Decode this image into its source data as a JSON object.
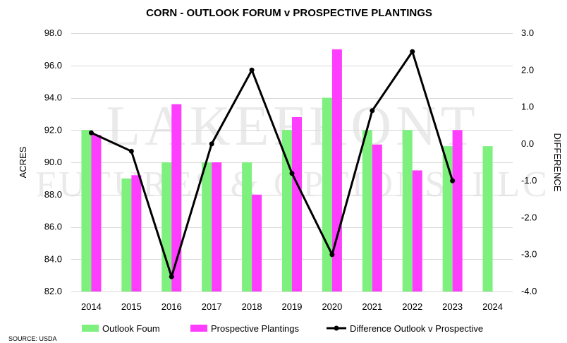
{
  "chart_data": {
    "type": "bar",
    "title": "CORN - OUTLOOK FORUM v PROSPECTIVE PLANTINGS",
    "categories": [
      "2014",
      "2015",
      "2016",
      "2017",
      "2018",
      "2019",
      "2020",
      "2021",
      "2022",
      "2023",
      "2024"
    ],
    "ylabel": "ACRES",
    "y2label": "DIFFERENCE",
    "ylim": [
      82.0,
      98.0
    ],
    "y2lim": [
      -4.0,
      3.0
    ],
    "yticks": [
      "82.0",
      "84.0",
      "86.0",
      "88.0",
      "90.0",
      "92.0",
      "94.0",
      "96.0",
      "98.0"
    ],
    "y2ticks": [
      "-4.0",
      "-3.0",
      "-2.0",
      "-1.0",
      "0.0",
      "1.0",
      "2.0",
      "3.0"
    ],
    "series": [
      {
        "name": "Outlook Foum",
        "type": "bar",
        "color": "#7ef07e",
        "values": [
          92.0,
          89.0,
          90.0,
          90.0,
          90.0,
          92.0,
          94.0,
          92.0,
          92.0,
          91.0,
          91.0
        ]
      },
      {
        "name": "Prospective Plantings",
        "type": "bar",
        "color": "#ff3dff",
        "values": [
          91.7,
          89.2,
          93.6,
          90.0,
          88.0,
          92.8,
          97.0,
          91.1,
          89.5,
          92.0,
          null
        ]
      },
      {
        "name": "Difference Outlook v Prospective",
        "type": "line",
        "axis": "right",
        "color": "#000000",
        "values": [
          0.3,
          -0.2,
          -3.6,
          0.0,
          2.0,
          -0.8,
          -3.0,
          0.9,
          2.5,
          -1.0,
          null
        ]
      }
    ],
    "source": "SOURCE: USDA",
    "watermark": [
      "LAKEFRONT",
      "FUTURES & OPTIONS, LLC"
    ]
  }
}
